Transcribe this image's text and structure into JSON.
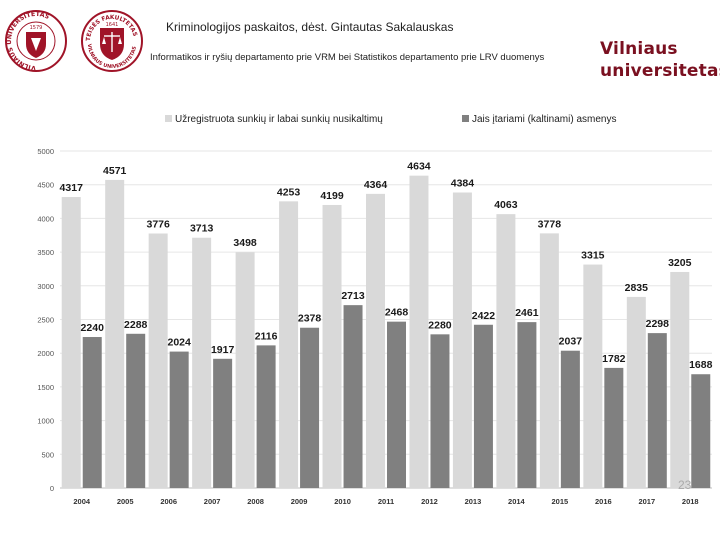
{
  "header": {
    "title": "Kriminologijos paskaitos, dėst. Gintautas Sakalauskas",
    "source": "Informatikos ir ryšių departamento prie VRM bei Statistikos departamento prie LRV duomenys",
    "brand_line1": "Vilniaus",
    "brand_line2": "universitetas"
  },
  "logos": {
    "left_ring_text": "VILNIAUS UNIVERSITETAS",
    "left_year": "1579",
    "right_ring_text": "TEISĖS FAKULTETAS",
    "right_year": "1641",
    "right_lower_text": "VILNIAUS UNIVERSITETAS"
  },
  "page_number": "23",
  "colors": {
    "series1": "#d9d9d9",
    "series2": "#808080",
    "brand": "#7a1020",
    "logo_red": "#a01428"
  },
  "chart_data": {
    "type": "bar",
    "title": "",
    "categories": [
      "2004",
      "2005",
      "2006",
      "2007",
      "2008",
      "2009",
      "2010",
      "2011",
      "2012",
      "2013",
      "2014",
      "2015",
      "2016",
      "2017",
      "2018"
    ],
    "series": [
      {
        "name": "Užregistruota sunkių ir labai sunkių nusikaltimų",
        "values": [
          4317,
          4571,
          3776,
          3713,
          3498,
          4253,
          4199,
          4364,
          4634,
          4384,
          4063,
          3778,
          3315,
          2835,
          3205
        ]
      },
      {
        "name": "Jais įtariami (kaltinami) asmenys",
        "values": [
          2240,
          2288,
          2024,
          1917,
          2116,
          2378,
          2713,
          2468,
          2280,
          2422,
          2461,
          2037,
          1782,
          2298,
          1688
        ]
      }
    ],
    "ylim": [
      0,
      5000
    ],
    "yticks": [
      0,
      500,
      1000,
      1500,
      2000,
      2500,
      3000,
      3500,
      4000,
      4500,
      5000
    ],
    "xlabel": "",
    "ylabel": "",
    "grid": true,
    "legend_position": "top"
  }
}
